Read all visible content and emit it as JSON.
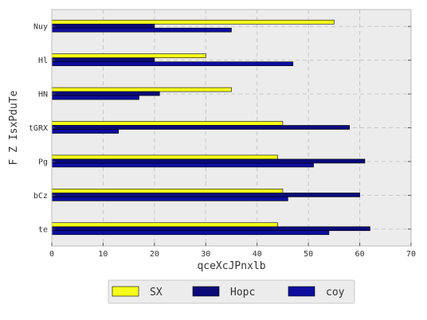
{
  "chart_data": {
    "type": "bar",
    "orientation": "horizontal",
    "categories": [
      "te",
      "bCz",
      "Pg",
      "tGRX",
      "HN",
      "Hl",
      "Nuy"
    ],
    "series": [
      {
        "name": "SX",
        "color": "#f5ff1a",
        "values": [
          44,
          45,
          44,
          45,
          35,
          30,
          55
        ]
      },
      {
        "name": "Hopc",
        "color": "#0a0a7a",
        "values": [
          62,
          60,
          61,
          58,
          21,
          20,
          20
        ]
      },
      {
        "name": "coy",
        "color": "#0d0d9e",
        "values": [
          54,
          46,
          51,
          13,
          17,
          47,
          35
        ]
      }
    ],
    "xlabel": "qceXcJPnxlb",
    "ylabel": "F  Z IsxPduTe",
    "xlim": [
      0,
      70
    ],
    "xticks": [
      0,
      10,
      20,
      30,
      40,
      50,
      60,
      70
    ],
    "grid": true,
    "legend": "bottom-center",
    "background": "#ececec"
  }
}
